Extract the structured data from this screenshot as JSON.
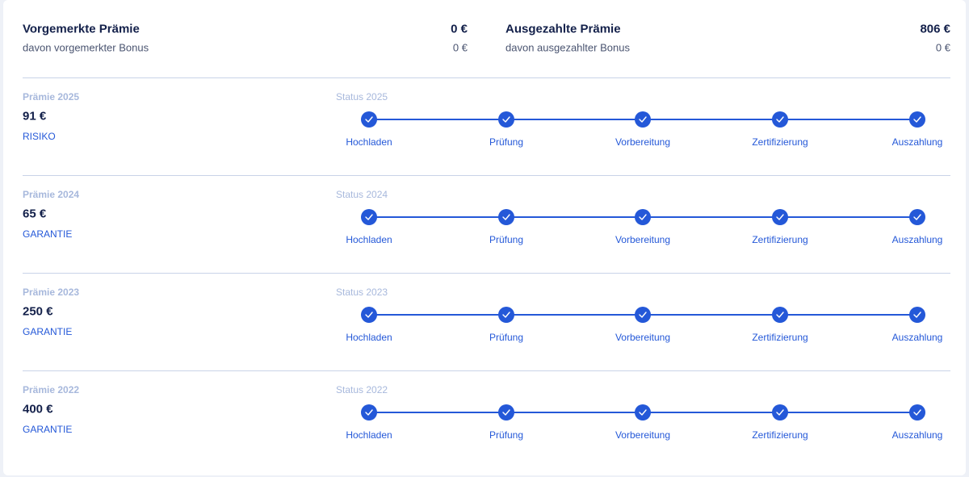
{
  "summary": {
    "left": {
      "title": "Vorgemerkte Prämie",
      "value": "0 €",
      "subtitle": "davon vorgemerkter Bonus",
      "subvalue": "0 €"
    },
    "right": {
      "title": "Ausgezahlte Prämie",
      "value": "806 €",
      "subtitle": "davon ausgezahlter Bonus",
      "subvalue": "0 €"
    }
  },
  "steps": [
    "Hochladen",
    "Prüfung",
    "Vorbereitung",
    "Zertifizierung",
    "Auszahlung"
  ],
  "rows": [
    {
      "label": "Prämie 2025",
      "amount": "91 €",
      "type": "RISIKO",
      "status": "Status 2025"
    },
    {
      "label": "Prämie 2024",
      "amount": "65 €",
      "type": "GARANTIE",
      "status": "Status 2024"
    },
    {
      "label": "Prämie 2023",
      "amount": "250 €",
      "type": "GARANTIE",
      "status": "Status 2023"
    },
    {
      "label": "Prämie 2022",
      "amount": "400 €",
      "type": "GARANTIE",
      "status": "Status 2022"
    }
  ]
}
